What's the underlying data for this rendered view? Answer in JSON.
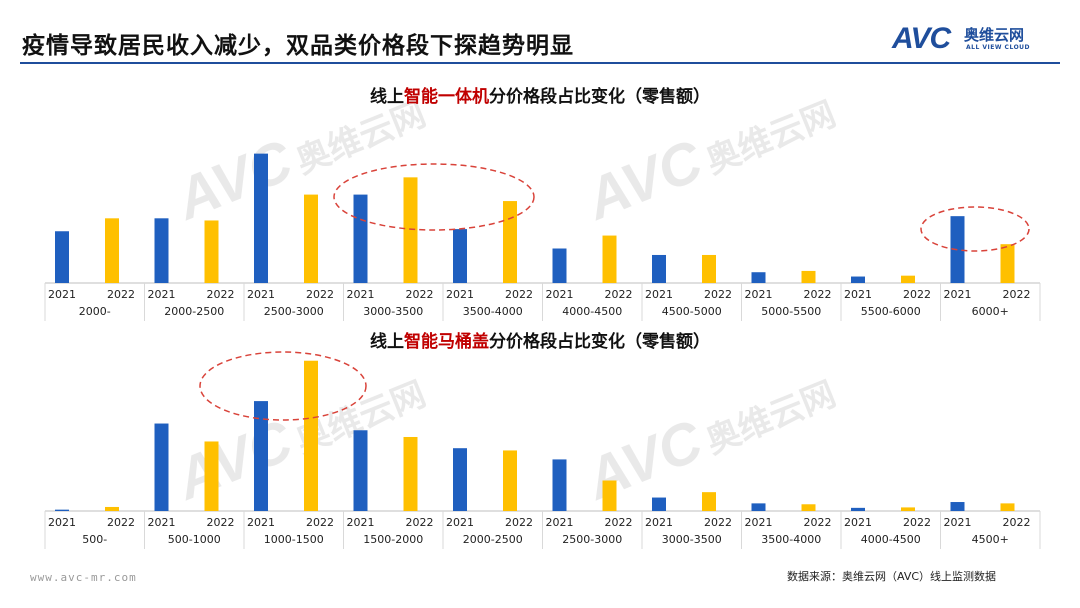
{
  "header": {
    "title": "疫情导致居民收入减少，双品类价格段下探趋势明显",
    "logo_mark": "AVC",
    "logo_cn": "奥维云网",
    "logo_en": "ALL VIEW CLOUD"
  },
  "footer": {
    "url": "www.avc-mr.com",
    "source": "数据来源：奥维云网（AVC）线上监测数据"
  },
  "colors": {
    "series_2021": "#1f5fbf",
    "series_2022": "#ffc000",
    "highlight": "#c00000",
    "circle": "#d9433a"
  },
  "chart_data": [
    {
      "type": "bar",
      "title_prefix": "线上",
      "title_highlight": "智能一体机",
      "title_suffix": "分价格段占比变化（零售额）",
      "categories": [
        "2000-",
        "2000-2500",
        "2500-3000",
        "3000-3500",
        "3500-4000",
        "4000-4500",
        "4500-5000",
        "5000-5500",
        "5500-6000",
        "6000+"
      ],
      "series": [
        {
          "name": "2021",
          "values": [
            12,
            15,
            30,
            20.5,
            12.5,
            8,
            6.5,
            2.5,
            1.5,
            15.5
          ]
        },
        {
          "name": "2022",
          "values": [
            15,
            14.5,
            20.5,
            24.5,
            19,
            11,
            6.5,
            2.8,
            1.7,
            9
          ]
        }
      ],
      "ylim": [
        0,
        32
      ],
      "grid": false,
      "legend": "none",
      "annotations": [
        "highlight-circle: 3000-3500 / 3500-4000",
        "highlight-circle: 6000+"
      ]
    },
    {
      "type": "bar",
      "title_prefix": "线上",
      "title_highlight": "智能马桶盖",
      "title_suffix": "分价格段占比变化（零售额）",
      "categories": [
        "500-",
        "500-1000",
        "1000-1500",
        "1500-2000",
        "2000-2500",
        "2500-3000",
        "3000-3500",
        "3500-4000",
        "4000-4500",
        "4500+"
      ],
      "series": [
        {
          "name": "2021",
          "values": [
            0.3,
            19.5,
            24.5,
            18,
            14,
            11.5,
            3,
            1.7,
            0.7,
            2
          ]
        },
        {
          "name": "2022",
          "values": [
            0.9,
            15.5,
            33.5,
            16.5,
            13.5,
            6.8,
            4.2,
            1.5,
            0.8,
            1.7
          ]
        }
      ],
      "ylim": [
        0,
        35
      ],
      "grid": false,
      "legend": "none",
      "annotations": [
        "highlight-circle: 1000-1500"
      ]
    }
  ]
}
